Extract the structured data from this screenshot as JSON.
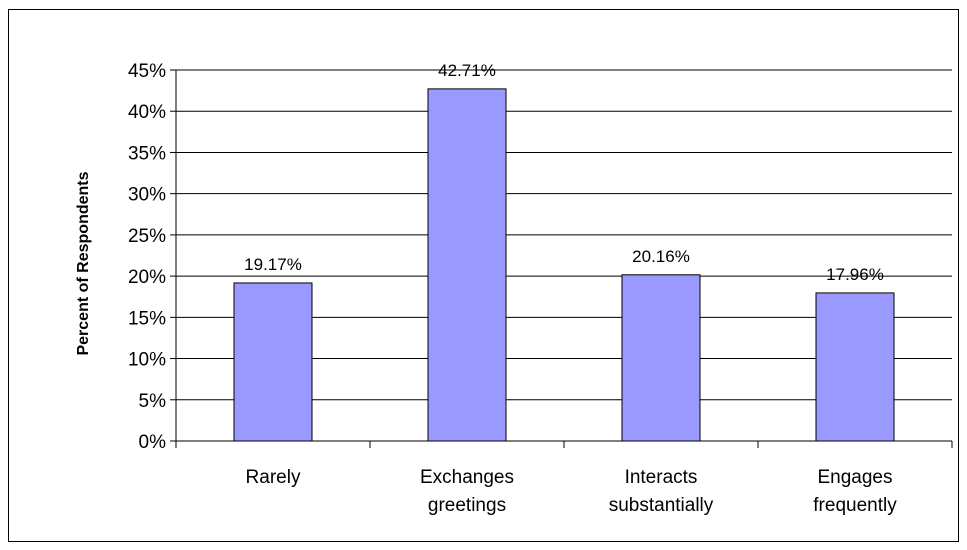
{
  "chart_data": {
    "type": "bar",
    "categories": [
      [
        "Rarely"
      ],
      [
        "Exchanges",
        "greetings"
      ],
      [
        "Interacts",
        "substantially"
      ],
      [
        "Engages",
        "frequently"
      ]
    ],
    "values": [
      19.17,
      42.71,
      20.16,
      17.96
    ],
    "data_labels": [
      "19.17%",
      "42.71%",
      "20.16%",
      "17.96%"
    ],
    "ylabel": "Percent of Respondents",
    "xlabel": "",
    "title": "",
    "ylim": [
      0,
      45
    ],
    "yticks": [
      0,
      5,
      10,
      15,
      20,
      25,
      30,
      35,
      40,
      45
    ],
    "ytick_labels": [
      "0%",
      "5%",
      "10%",
      "15%",
      "20%",
      "25%",
      "30%",
      "35%",
      "40%",
      "45%"
    ],
    "grid": true,
    "legend": "none",
    "colors": {
      "bar_fill": "#9999FF",
      "bar_stroke": "#000000",
      "grid": "#000000",
      "text": "#000000"
    }
  }
}
